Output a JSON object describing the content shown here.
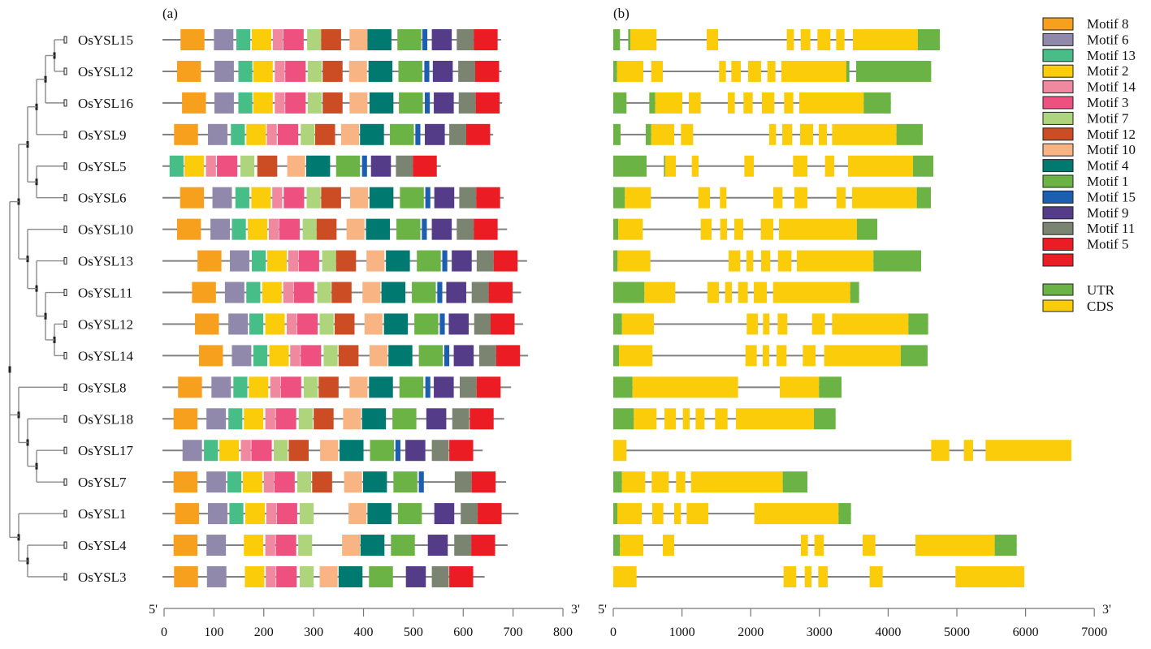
{
  "panel_a_label": "(a)",
  "panel_b_label": "(b)",
  "axis_a": {
    "five_prime": "5'",
    "three_prime": "3'",
    "ticks": [
      0,
      100,
      200,
      300,
      400,
      500,
      600,
      700,
      800
    ],
    "unit": "aa"
  },
  "axis_b": {
    "five_prime": "5'",
    "three_prime": "3'",
    "ticks": [
      0,
      1000,
      2000,
      3000,
      4000,
      5000,
      6000,
      7000
    ],
    "unit": "bp"
  },
  "motif_legend": [
    {
      "label": "Motif 8",
      "color": "#F7A01E",
      "width": 48
    },
    {
      "label": "Motif 6",
      "color": "#9089AC",
      "width": 39
    },
    {
      "label": "Motif 13",
      "color": "#47BD87",
      "width": 28
    },
    {
      "label": "Motif 2",
      "color": "#FACC0A",
      "width": 39
    },
    {
      "label": "Motif 14",
      "color": "#F088A0",
      "width": 20
    },
    {
      "label": "Motif 3",
      "color": "#EE5080",
      "width": 41
    },
    {
      "label": "Motif 7",
      "color": "#AED47C",
      "width": 28
    },
    {
      "label": "Motif 12",
      "color": "#CC4C24",
      "width": 40
    },
    {
      "label": "Motif 10",
      "color": "#F8B482",
      "width": 36
    },
    {
      "label": "Motif 4",
      "color": "#007A70",
      "width": 48
    },
    {
      "label": "Motif 1",
      "color": "#6AB344",
      "width": 48
    },
    {
      "label": "Motif 15",
      "color": "#1C5EB0",
      "width": 10
    },
    {
      "label": "Motif 9",
      "color": "#553C88",
      "width": 40
    },
    {
      "label": "Motif 11",
      "color": "#7A8470",
      "width": 34
    },
    {
      "label": "Motif 5",
      "color": "#EC1C24",
      "width": 48
    },
    {
      "label": "",
      "color": "#EC1C24",
      "width": 48
    }
  ],
  "structure_legend": [
    {
      "label": "UTR",
      "color": "#6AB344"
    },
    {
      "label": "CDS",
      "color": "#FACC0A"
    }
  ],
  "tree": [
    [
      [
        [
          [
            [
              0,
              1
            ],
            2
          ],
          3
        ],
        [
          4,
          5
        ]
      ],
      [
        6,
        [
          7,
          [
            8,
            [
              9,
              10
            ]
          ]
        ]
      ]
    ],
    [
      11,
      [
        12,
        [
          13,
          14
        ]
      ]
    ],
    [
      15,
      [
        16,
        17
      ]
    ]
  ],
  "genes": [
    {
      "name": "OsYSL15",
      "protein_length": 676,
      "motifs": [
        33,
        100,
        145,
        176,
        218,
        239,
        287,
        315,
        372,
        408,
        468,
        518,
        537,
        587,
        621
      ],
      "exons": [
        [
          "UTR",
          0,
          98
        ],
        [
          "UTR",
          217,
          248
        ],
        [
          "CDS",
          248,
          630
        ],
        [
          "CDS",
          1359,
          1525
        ],
        [
          "CDS",
          2525,
          2628
        ],
        [
          "CDS",
          2727,
          2868
        ],
        [
          "CDS",
          2971,
          3160
        ],
        [
          "CDS",
          3243,
          3365
        ],
        [
          "CDS",
          3487,
          4432
        ],
        [
          "UTR",
          4432,
          4752
        ]
      ]
    },
    {
      "name": "OsYSL12",
      "protein_length": 677,
      "motifs": [
        26,
        101,
        149,
        179,
        222,
        243,
        288,
        318,
        371,
        410,
        470,
        522,
        539,
        590,
        624
      ],
      "exons": [
        [
          "UTR",
          0,
          55
        ],
        [
          "CDS",
          55,
          437
        ],
        [
          "CDS",
          552,
          721
        ],
        [
          "CDS",
          1540,
          1639
        ],
        [
          "CDS",
          1718,
          1856
        ],
        [
          "CDS",
          1962,
          2151
        ],
        [
          "CDS",
          2242,
          2360
        ],
        [
          "CDS",
          2447,
          3392
        ],
        [
          "UTR",
          3392,
          3436
        ],
        [
          "UTR",
          3534,
          4626
        ]
      ]
    },
    {
      "name": "OsYSL16",
      "protein_length": 678,
      "motifs": [
        36,
        101,
        149,
        179,
        222,
        243,
        288,
        318,
        372,
        412,
        471,
        523,
        541,
        591,
        625
      ],
      "exons": [
        [
          "UTR",
          0,
          193
        ],
        [
          "UTR",
          524,
          611
        ],
        [
          "CDS",
          611,
          1005
        ],
        [
          "CDS",
          1099,
          1273
        ],
        [
          "CDS",
          1667,
          1769
        ],
        [
          "CDS",
          1895,
          2029
        ],
        [
          "CDS",
          2163,
          2344
        ],
        [
          "CDS",
          2486,
          2620
        ],
        [
          "CDS",
          2707,
          3645
        ],
        [
          "UTR",
          3645,
          4039
        ]
      ]
    },
    {
      "name": "OsYSL9",
      "protein_length": 660,
      "motifs": [
        20,
        88,
        134,
        165,
        206,
        228,
        274,
        303,
        355,
        393,
        453,
        504,
        523,
        572,
        606
      ],
      "exons": [
        [
          "UTR",
          0,
          106
        ],
        [
          "UTR",
          473,
          552
        ],
        [
          "CDS",
          552,
          887
        ],
        [
          "CDS",
          985,
          1162
        ],
        [
          "CDS",
          2269,
          2368
        ],
        [
          "CDS",
          2459,
          2604
        ],
        [
          "CDS",
          2719,
          2908
        ],
        [
          "CDS",
          2990,
          3109
        ],
        [
          "CDS",
          3184,
          4121
        ],
        [
          "UTR",
          4121,
          4503
        ]
      ]
    },
    {
      "name": "OsYSL5",
      "protein_length": 555,
      "motifs": [
        null,
        null,
        11,
        41,
        84,
        106,
        153,
        187,
        247,
        285,
        345,
        397,
        415,
        465,
        499
      ],
      "exons": [
        [
          "UTR",
          0,
          485
        ],
        [
          "UTR",
          737,
          756
        ],
        [
          "CDS",
          756,
          910
        ],
        [
          "CDS",
          1143,
          1241
        ],
        [
          "CDS",
          1907,
          2045
        ],
        [
          "CDS",
          2616,
          2825
        ],
        [
          "CDS",
          3081,
          3215
        ],
        [
          "CDS",
          3416,
          4362
        ],
        [
          "UTR",
          4362,
          4657
        ]
      ]
    },
    {
      "name": "OsYSL6",
      "protein_length": 681,
      "motifs": [
        32,
        97,
        143,
        175,
        217,
        240,
        286,
        315,
        373,
        412,
        473,
        524,
        542,
        592,
        626
      ],
      "exons": [
        [
          "UTR",
          0,
          169
        ],
        [
          "CDS",
          169,
          548
        ],
        [
          "CDS",
          1237,
          1407
        ],
        [
          "CDS",
          1552,
          1647
        ],
        [
          "CDS",
          2329,
          2463
        ],
        [
          "CDS",
          2636,
          2825
        ],
        [
          "CDS",
          3247,
          3381
        ],
        [
          "CDS",
          3475,
          4417
        ],
        [
          "UTR",
          4417,
          4622
        ]
      ]
    },
    {
      "name": "OsYSL10",
      "protein_length": 688,
      "motifs": [
        26,
        93,
        136,
        168,
        210,
        231,
        278,
        306,
        366,
        405,
        466,
        517,
        537,
        587,
        621
      ],
      "exons": [
        [
          "UTR",
          0,
          71
        ],
        [
          "CDS",
          71,
          429
        ],
        [
          "CDS",
          1273,
          1430
        ],
        [
          "CDS",
          1556,
          1655
        ],
        [
          "CDS",
          1761,
          1891
        ],
        [
          "CDS",
          2147,
          2329
        ],
        [
          "CDS",
          2411,
          3546
        ],
        [
          "UTR",
          3546,
          3842
        ]
      ]
    },
    {
      "name": "OsYSL13",
      "protein_length": 728,
      "motifs": [
        67,
        132,
        176,
        207,
        249,
        270,
        317,
        345,
        406,
        445,
        507,
        558,
        577,
        627,
        661
      ],
      "exons": [
        [
          "UTR",
          0,
          63
        ],
        [
          "CDS",
          63,
          540
        ],
        [
          "CDS",
          1678,
          1848
        ],
        [
          "CDS",
          1938,
          2037
        ],
        [
          "CDS",
          2151,
          2285
        ],
        [
          "CDS",
          2396,
          2593
        ],
        [
          "CDS",
          2671,
          3786
        ],
        [
          "UTR",
          3786,
          4480
        ]
      ]
    },
    {
      "name": "OsYSL11",
      "protein_length": 716,
      "motifs": [
        56,
        122,
        165,
        197,
        239,
        260,
        307,
        336,
        398,
        436,
        497,
        548,
        566,
        617,
        651
      ],
      "exons": [
        [
          "UTR",
          0,
          453
        ],
        [
          "CDS",
          453,
          902
        ],
        [
          "CDS",
          1371,
          1537
        ],
        [
          "CDS",
          1627,
          1726
        ],
        [
          "CDS",
          1816,
          1958
        ],
        [
          "CDS",
          2045,
          2234
        ],
        [
          "CDS",
          2325,
          3448
        ],
        [
          "UTR",
          3448,
          3577
        ]
      ]
    },
    {
      "name": "OsYSL12",
      "protein_length": 720,
      "motifs": [
        62,
        129,
        171,
        203,
        246,
        267,
        312,
        342,
        402,
        441,
        502,
        553,
        571,
        622,
        655
      ],
      "exons": [
        [
          "UTR",
          0,
          126
        ],
        [
          "CDS",
          126,
          591
        ],
        [
          "CDS",
          1942,
          2104
        ],
        [
          "CDS",
          2179,
          2273
        ],
        [
          "CDS",
          2392,
          2533
        ],
        [
          "CDS",
          2892,
          3081
        ],
        [
          "CDS",
          3184,
          4295
        ],
        [
          "UTR",
          4295,
          4582
        ]
      ]
    },
    {
      "name": "OsYSL14",
      "protein_length": 730,
      "motifs": [
        70,
        136,
        179,
        211,
        253,
        274,
        320,
        350,
        412,
        450,
        511,
        562,
        581,
        632,
        666
      ],
      "exons": [
        [
          "UTR",
          0,
          83
        ],
        [
          "CDS",
          83,
          571
        ],
        [
          "CDS",
          1923,
          2088
        ],
        [
          "CDS",
          2175,
          2269
        ],
        [
          "CDS",
          2376,
          2522
        ],
        [
          "CDS",
          2758,
          2943
        ],
        [
          "CDS",
          3069,
          4184
        ],
        [
          "UTR",
          4184,
          4574
        ]
      ]
    },
    {
      "name": "OsYSL8",
      "protein_length": 696,
      "motifs": [
        28,
        95,
        139,
        170,
        213,
        234,
        280,
        310,
        372,
        411,
        472,
        524,
        541,
        593,
        627
      ],
      "exons": [
        [
          "UTR",
          0,
          280
        ],
        [
          "CDS",
          280,
          1816
        ],
        [
          "CDS",
          2423,
          2994
        ],
        [
          "UTR",
          2994,
          3321
        ]
      ]
    },
    {
      "name": "OsYSL18",
      "protein_length": 682,
      "motifs": [
        19,
        85,
        129,
        160,
        203,
        224,
        270,
        300,
        359,
        397,
        458,
        null,
        526,
        578,
        613
      ],
      "exons": [
        [
          "UTR",
          0,
          299
        ],
        [
          "CDS",
          299,
          630
        ],
        [
          "CDS",
          745,
          910
        ],
        [
          "CDS",
          1013,
          1111
        ],
        [
          "CDS",
          1198,
          1328
        ],
        [
          "CDS",
          1481,
          1663
        ],
        [
          "CDS",
          1785,
          2920
        ],
        [
          "UTR",
          2920,
          3235
        ]
      ]
    },
    {
      "name": "OsYSL17",
      "protein_length": 639,
      "motifs": [
        null,
        37,
        80,
        111,
        154,
        175,
        220,
        250,
        313,
        352,
        413,
        464,
        484,
        537,
        572
      ],
      "exons": [
        [
          "CDS",
          0,
          193
        ],
        [
          "CDS",
          4626,
          4890
        ],
        [
          "CDS",
          5102,
          5236
        ],
        [
          "CDS",
          5418,
          6667
        ]
      ]
    },
    {
      "name": "OsYSL7",
      "protein_length": 686,
      "motifs": [
        19,
        85,
        127,
        158,
        200,
        221,
        267,
        297,
        361,
        399,
        460,
        511,
        null,
        583,
        617
      ],
      "exons": [
        [
          "UTR",
          0,
          126
        ],
        [
          "CDS",
          126,
          465
        ],
        [
          "CDS",
          559,
          808
        ],
        [
          "CDS",
          914,
          1048
        ],
        [
          "CDS",
          1131,
          2466
        ],
        [
          "UTR",
          2466,
          2825
        ]
      ]
    },
    {
      "name": "OsYSL1",
      "protein_length": 711,
      "motifs": [
        22,
        88,
        131,
        163,
        205,
        226,
        272,
        null,
        370,
        408,
        469,
        null,
        542,
        595,
        629
      ],
      "exons": [
        [
          "UTR",
          0,
          59
        ],
        [
          "CDS",
          59,
          414
        ],
        [
          "CDS",
          567,
          729
        ],
        [
          "CDS",
          886,
          985
        ],
        [
          "CDS",
          1068,
          1383
        ],
        [
          "CDS",
          2053,
          3278
        ],
        [
          "UTR",
          3278,
          3459
        ]
      ]
    },
    {
      "name": "OsYSL4",
      "protein_length": 689,
      "motifs": [
        19,
        85,
        null,
        160,
        203,
        224,
        269,
        null,
        357,
        394,
        455,
        null,
        529,
        582,
        616
      ],
      "exons": [
        [
          "UTR",
          0,
          98
        ],
        [
          "CDS",
          98,
          437
        ],
        [
          "CDS",
          721,
          886
        ],
        [
          "CDS",
          2730,
          2833
        ],
        [
          "CDS",
          2927,
          3065
        ],
        [
          "CDS",
          3629,
          3814
        ],
        [
          "CDS",
          4397,
          5551
        ],
        [
          "UTR",
          5551,
          5871
        ]
      ]
    },
    {
      "name": "OsYSL3",
      "protein_length": 643,
      "motifs": [
        20,
        86,
        null,
        162,
        204,
        225,
        272,
        null,
        312,
        350,
        411,
        null,
        485,
        537,
        572
      ],
      "exons": [
        [
          "CDS",
          0,
          339
        ],
        [
          "CDS",
          2478,
          2663
        ],
        [
          "CDS",
          2786,
          2884
        ],
        [
          "CDS",
          2983,
          3120
        ],
        [
          "CDS",
          3731,
          3920
        ],
        [
          "CDS",
          4980,
          5981
        ]
      ]
    }
  ]
}
